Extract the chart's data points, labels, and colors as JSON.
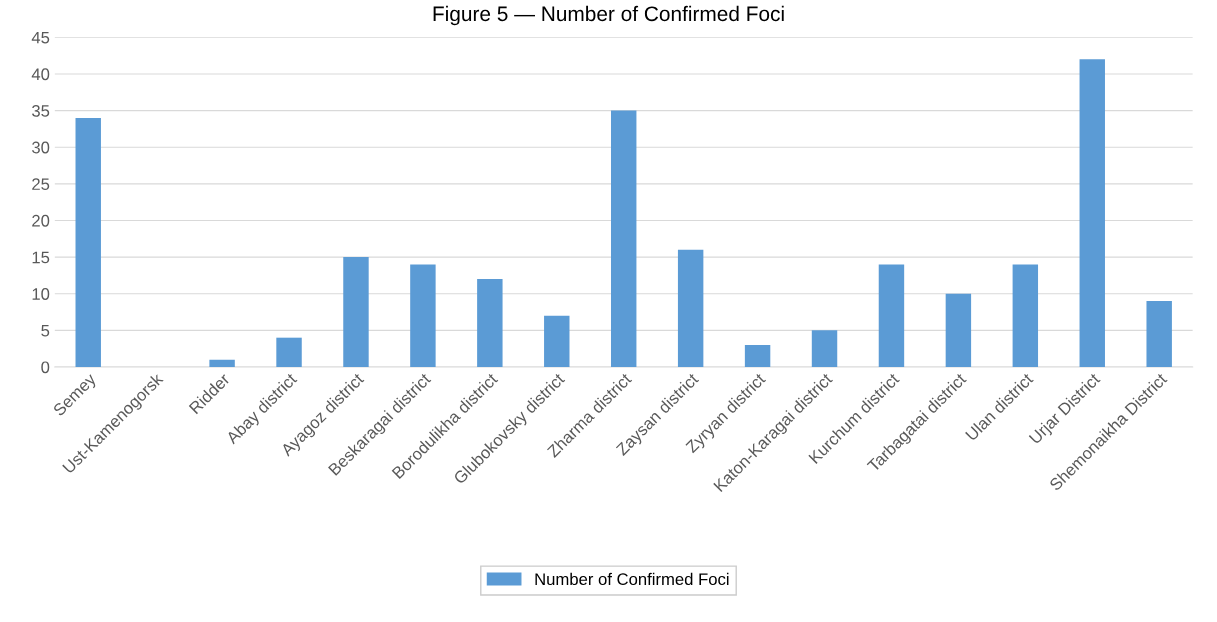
{
  "chart_data": {
    "type": "bar",
    "title": "Figure 5 — Number of Confirmed Foci",
    "categories": [
      "Semey",
      "Ust-Kamenogorsk",
      "Ridder",
      "Abay district",
      "Ayagoz district",
      "Beskaragai district",
      "Borodulikha district",
      "Glubokovsky district",
      "Zharma district",
      "Zaysan district",
      "Zyryan district",
      "Katon-Karagai district",
      "Kurchum district",
      "Tarbagatai district",
      "Ulan district",
      "Urjar District",
      "Shemonaikha District"
    ],
    "series": [
      {
        "name": "Number of Confirmed Foci",
        "color": "#5b9bd5",
        "values": [
          34,
          0,
          1,
          4,
          15,
          14,
          12,
          7,
          35,
          16,
          3,
          5,
          14,
          10,
          14,
          42,
          9
        ]
      }
    ],
    "ylim": [
      0,
      45
    ],
    "yticks": [
      0,
      5,
      10,
      15,
      20,
      25,
      30,
      35,
      40,
      45
    ],
    "grid": "y",
    "legend": "bottom"
  }
}
